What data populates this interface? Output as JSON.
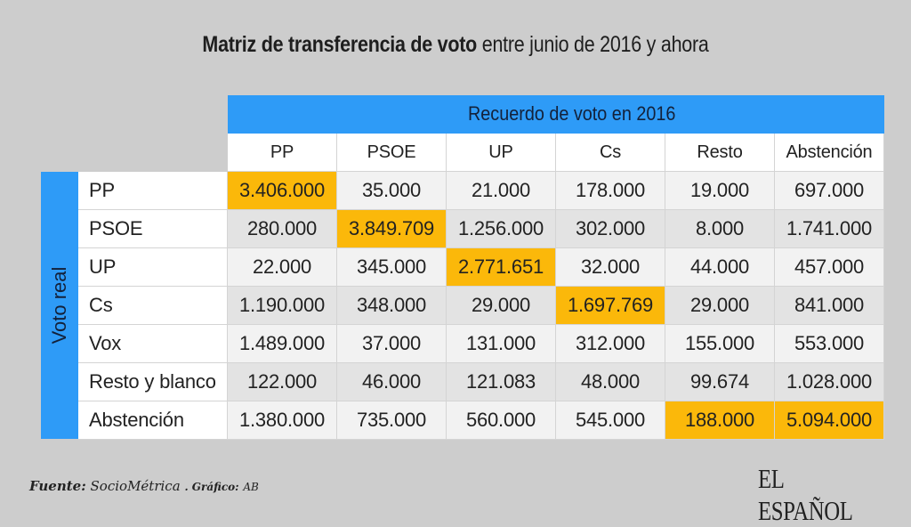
{
  "title": {
    "bold": "Matriz de transferencia de voto",
    "rest": " entre junio de 2016 y ahora"
  },
  "chart_data": {
    "type": "table",
    "title": "Matriz de transferencia de voto entre junio de 2016 y ahora",
    "column_group_label": "Recuerdo de voto en 2016",
    "row_group_label": "Voto real",
    "columns": [
      "PP",
      "PSOE",
      "UP",
      "Cs",
      "Resto",
      "Abstención"
    ],
    "rows": [
      {
        "label": "PP",
        "values": [
          "3.406.000",
          "35.000",
          "21.000",
          "178.000",
          "19.000",
          "697.000"
        ],
        "highlight": [
          0
        ]
      },
      {
        "label": "PSOE",
        "values": [
          "280.000",
          "3.849.709",
          "1.256.000",
          "302.000",
          "8.000",
          "1.741.000"
        ],
        "highlight": [
          1
        ]
      },
      {
        "label": "UP",
        "values": [
          "22.000",
          "345.000",
          "2.771.651",
          "32.000",
          "44.000",
          "457.000"
        ],
        "highlight": [
          2
        ]
      },
      {
        "label": "Cs",
        "values": [
          "1.190.000",
          "348.000",
          "29.000",
          "1.697.769",
          "29.000",
          "841.000"
        ],
        "highlight": [
          3
        ]
      },
      {
        "label": "Vox",
        "values": [
          "1.489.000",
          "37.000",
          "131.000",
          "312.000",
          "155.000",
          "553.000"
        ],
        "highlight": []
      },
      {
        "label": "Resto y blanco",
        "values": [
          "122.000",
          "46.000",
          "121.083",
          "48.000",
          "99.674",
          "1.028.000"
        ],
        "highlight": []
      },
      {
        "label": "Abstención",
        "values": [
          "1.380.000",
          "735.000",
          "560.000",
          "545.000",
          "188.000",
          "5.094.000"
        ],
        "highlight": [
          4,
          5
        ]
      }
    ],
    "colors": {
      "header": "#2e9bf7",
      "highlight": "#fbb80a",
      "row_light": "#f2f2f2",
      "row_dark": "#e3e3e3"
    }
  },
  "footer": {
    "source_label": "Fuente:",
    "source": "SocioMétrica",
    "credit_label": ". Gráfico:",
    "credit": "AB"
  },
  "logo": "EL ESPAÑOL"
}
